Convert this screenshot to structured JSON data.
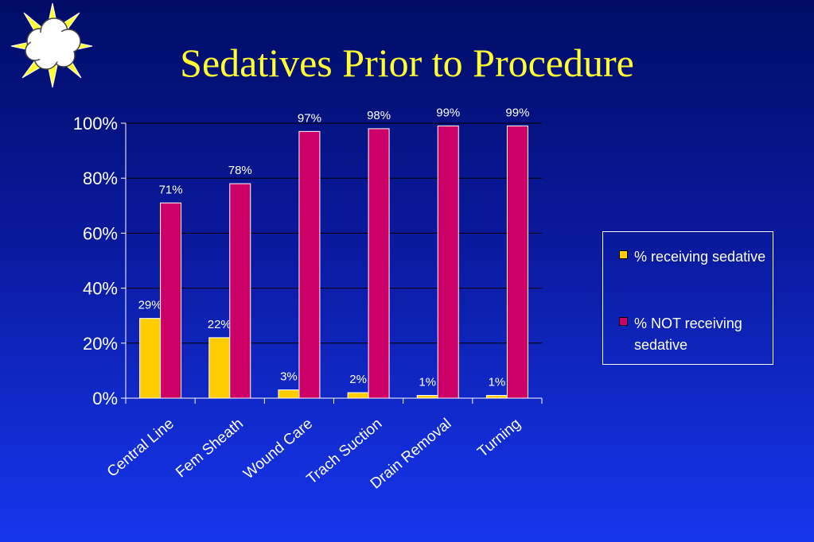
{
  "slide": {
    "title": "Sedatives Prior to Procedure",
    "icon": "sun-cloud-icon"
  },
  "colors": {
    "background_top": "#000c66",
    "background_bottom": "#1636ee",
    "title": "#ffff33",
    "series_receiving": "#ffcc00",
    "series_not_receiving": "#cc0066"
  },
  "chart_data": {
    "type": "bar",
    "title": "",
    "xlabel": "",
    "ylabel": "",
    "ylim": [
      0,
      100
    ],
    "yticks": [
      "0%",
      "20%",
      "40%",
      "60%",
      "80%",
      "100%"
    ],
    "grid": true,
    "legend_position": "right",
    "categories": [
      "Central Line",
      "Fem Sheath",
      "Wound Care",
      "Trach Suction",
      "Drain Removal",
      "Turning"
    ],
    "series": [
      {
        "name": "% receiving sedative",
        "values": [
          29,
          22,
          3,
          2,
          1,
          1
        ],
        "labels": [
          "29%",
          "22%",
          "3%",
          "2%",
          "1%",
          "1%"
        ],
        "color": "#ffcc00"
      },
      {
        "name": "% NOT receiving sedative",
        "values": [
          71,
          78,
          97,
          98,
          99,
          99
        ],
        "labels": [
          "71%",
          "78%",
          "97%",
          "98%",
          "99%",
          "99%"
        ],
        "color": "#cc0066"
      }
    ]
  }
}
